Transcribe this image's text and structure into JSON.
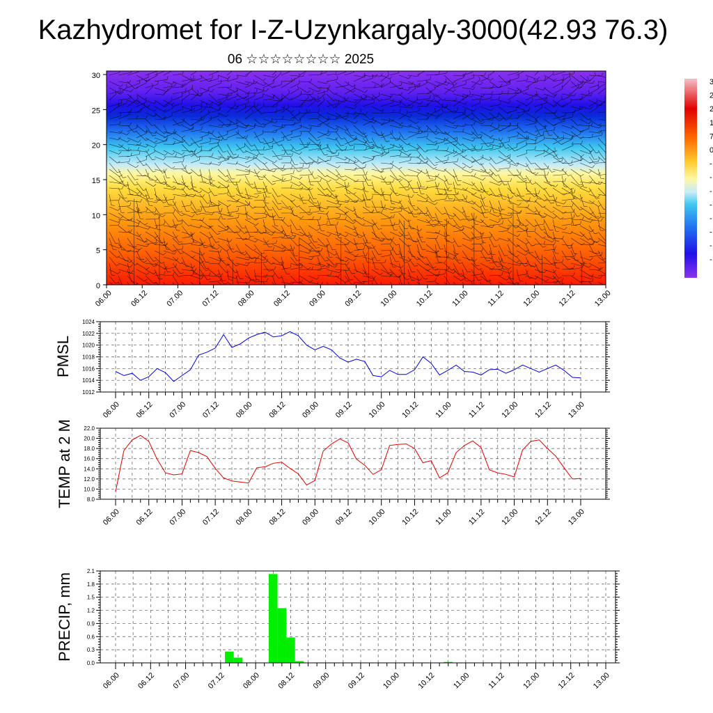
{
  "figure": {
    "title": "Kazhydromet for I-Z-Uzynkargaly-3000(42.93 76.3)",
    "subtitle": "06 ☆☆☆☆☆☆☆☆ 2025"
  },
  "colors": {
    "pmsl_line": "#0000dd",
    "temp_line": "#e00000",
    "precip_bar": "#00ee00",
    "grid": "#555555"
  },
  "chart_data": [
    {
      "type": "heatmap",
      "name": "vertical-profile",
      "x_ticks": [
        "06.00",
        "06.12",
        "07.00",
        "07.12",
        "08.00",
        "08.12",
        "09.00",
        "09.12",
        "10.00",
        "10.12",
        "11.00",
        "11.12",
        "12.00",
        "12.12",
        "13.00"
      ],
      "y_ticks": [
        0,
        5,
        10,
        15,
        20,
        25,
        30
      ],
      "ylim": [
        0,
        30.5
      ],
      "colorbar_visible_labels": [
        "3",
        "2",
        "2",
        "1",
        "7",
        "0",
        "-",
        "-",
        "-",
        "-",
        "-",
        "-",
        "-",
        "-"
      ],
      "overlay": "wind barbs",
      "description_of_field": "value decreases with height: red near surface, yellow near 15, blue near 20-25, violet above 25"
    },
    {
      "type": "line",
      "name": "pmsl",
      "ylabel": "PMSL",
      "ylim": [
        1012,
        1024
      ],
      "y_ticks": [
        "1012",
        "1014",
        "1016",
        "1018",
        "1020",
        "1022",
        "1024"
      ],
      "x_ticks": [
        "06.00",
        "06.12",
        "07.00",
        "07.12",
        "08.00",
        "08.12",
        "09.00",
        "09.12",
        "10.00",
        "10.12",
        "11.00",
        "11.12",
        "12.00",
        "12.12",
        "13.00"
      ],
      "step_hours": 3,
      "values": [
        1015.5,
        1014.8,
        1015.2,
        1014.0,
        1014.6,
        1016.0,
        1015.3,
        1013.8,
        1014.8,
        1015.8,
        1018.3,
        1018.8,
        1019.5,
        1021.8,
        1019.6,
        1020.2,
        1021.2,
        1021.8,
        1022.2,
        1021.4,
        1021.6,
        1022.3,
        1021.6,
        1020.0,
        1019.2,
        1019.8,
        1019.2,
        1017.8,
        1017.1,
        1017.6,
        1017.2,
        1014.8,
        1014.6,
        1015.7,
        1015.0,
        1015.0,
        1015.8,
        1018.0,
        1016.9,
        1014.9,
        1015.7,
        1016.6,
        1015.5,
        1015.4,
        1014.9,
        1015.8,
        1015.9,
        1015.2,
        1015.8,
        1016.6,
        1016.0,
        1015.4,
        1016.0,
        1016.6,
        1015.7,
        1014.5,
        1014.4
      ]
    },
    {
      "type": "line",
      "name": "temperature",
      "ylabel": "TEMP at 2 M",
      "ylim": [
        8,
        22
      ],
      "y_ticks": [
        "8.0",
        "10.0",
        "12.0",
        "14.0",
        "16.0",
        "18.0",
        "20.0",
        "22.0"
      ],
      "x_ticks": [
        "06.00",
        "06.12",
        "07.00",
        "07.12",
        "08.00",
        "08.12",
        "09.00",
        "09.12",
        "10.00",
        "10.12",
        "11.00",
        "11.12",
        "12.00",
        "12.12",
        "13.00"
      ],
      "step_hours": 3,
      "values": [
        9.5,
        17.6,
        19.7,
        20.6,
        19.4,
        15.9,
        13.2,
        12.8,
        13.0,
        17.6,
        17.2,
        16.4,
        14.1,
        12.2,
        11.6,
        11.4,
        11.2,
        14.2,
        14.4,
        15.1,
        15.3,
        14.1,
        13.0,
        10.8,
        11.7,
        17.5,
        18.9,
        19.9,
        19.1,
        15.9,
        14.7,
        12.9,
        13.8,
        18.6,
        18.8,
        18.9,
        18.0,
        15.2,
        15.6,
        12.2,
        13.2,
        17.2,
        18.6,
        19.5,
        18.2,
        13.8,
        13.2,
        12.9,
        12.4,
        17.7,
        19.4,
        19.7,
        18.0,
        16.5,
        14.2,
        12.0,
        12.1
      ]
    },
    {
      "type": "bar",
      "name": "precipitation",
      "ylabel": "PRECIP, mm",
      "ylim": [
        0,
        2.1
      ],
      "y_ticks": [
        "0.0",
        "0.3",
        "0.6",
        "0.9",
        "1.2",
        "1.5",
        "1.8",
        "2.1"
      ],
      "x_ticks": [
        "06.00",
        "06.12",
        "07.00",
        "07.12",
        "08.00",
        "08.12",
        "09.00",
        "09.12",
        "10.00",
        "10.12",
        "11.00",
        "11.12",
        "12.00",
        "12.12",
        "13.00"
      ],
      "step_hours": 3,
      "values": [
        0,
        0,
        0,
        0,
        0,
        0,
        0,
        0,
        0,
        0,
        0,
        0,
        0,
        0.26,
        0.12,
        0,
        0,
        0,
        2.03,
        1.25,
        0.58,
        0.04,
        0,
        0,
        0,
        0,
        0,
        0,
        0,
        0,
        0,
        0,
        0,
        0,
        0,
        0,
        0,
        0,
        0.02,
        0,
        0,
        0,
        0,
        0,
        0,
        0,
        0,
        0,
        0,
        0,
        0,
        0,
        0,
        0,
        0,
        0
      ]
    }
  ]
}
